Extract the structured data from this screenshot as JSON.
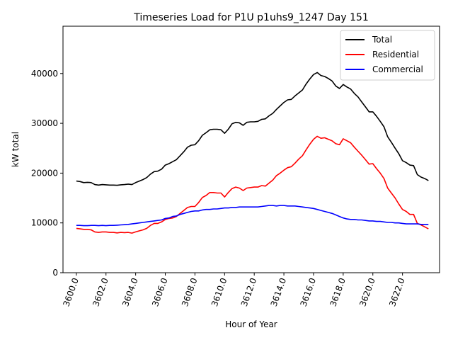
{
  "chart_data": {
    "type": "line",
    "title": "Timeseries Load for P1U p1uhs9_1247  Day 151",
    "xlabel": "Hour of Year",
    "ylabel": "kW total",
    "xlim": [
      3599.1,
      3624.5
    ],
    "ylim": [
      0,
      49500
    ],
    "xticks": [
      3600,
      3602,
      3604,
      3606,
      3608,
      3610,
      3612,
      3614,
      3616,
      3618,
      3620,
      3622
    ],
    "xtick_labels": [
      "3600.0",
      "3602.0",
      "3604.0",
      "3606.0",
      "3608.0",
      "3610.0",
      "3612.0",
      "3614.0",
      "3616.0",
      "3618.0",
      "3620.0",
      "3622.0"
    ],
    "yticks": [
      0,
      10000,
      20000,
      30000,
      40000
    ],
    "ytick_labels": [
      "0",
      "10000",
      "20000",
      "30000",
      "40000"
    ],
    "legend_position": "top-right",
    "x": [
      3600.0,
      3600.25,
      3600.5,
      3600.75,
      3601.0,
      3601.25,
      3601.5,
      3601.75,
      3602.0,
      3602.25,
      3602.5,
      3602.75,
      3603.0,
      3603.25,
      3603.5,
      3603.75,
      3604.0,
      3604.25,
      3604.5,
      3604.75,
      3605.0,
      3605.25,
      3605.5,
      3605.75,
      3606.0,
      3606.25,
      3606.5,
      3606.75,
      3607.0,
      3607.25,
      3607.5,
      3607.75,
      3608.0,
      3608.25,
      3608.5,
      3608.75,
      3609.0,
      3609.25,
      3609.5,
      3609.75,
      3610.0,
      3610.25,
      3610.5,
      3610.75,
      3611.0,
      3611.25,
      3611.5,
      3611.75,
      3612.0,
      3612.25,
      3612.5,
      3612.75,
      3613.0,
      3613.25,
      3613.5,
      3613.75,
      3614.0,
      3614.25,
      3614.5,
      3614.75,
      3615.0,
      3615.25,
      3615.5,
      3615.75,
      3616.0,
      3616.25,
      3616.5,
      3616.75,
      3617.0,
      3617.25,
      3617.5,
      3617.75,
      3618.0,
      3618.25,
      3618.5,
      3618.75,
      3619.0,
      3619.25,
      3619.5,
      3619.75,
      3620.0,
      3620.25,
      3620.5,
      3620.75,
      3621.0,
      3621.25,
      3621.5,
      3621.75,
      3622.0,
      3622.25,
      3622.5,
      3622.75,
      3623.0,
      3623.25,
      3623.5,
      3623.75
    ],
    "series": [
      {
        "name": "Total",
        "color": "#000000",
        "values": [
          18400,
          18300,
          18100,
          18150,
          18100,
          17700,
          17600,
          17700,
          17650,
          17600,
          17600,
          17550,
          17650,
          17700,
          17800,
          17700,
          18100,
          18400,
          18700,
          19100,
          19800,
          20300,
          20400,
          20800,
          21600,
          21900,
          22300,
          22700,
          23500,
          24300,
          25200,
          25600,
          25700,
          26500,
          27600,
          28100,
          28700,
          28800,
          28800,
          28700,
          28000,
          28800,
          29900,
          30200,
          30100,
          29600,
          30200,
          30300,
          30300,
          30400,
          30800,
          30900,
          31500,
          32000,
          32800,
          33500,
          34200,
          34700,
          34800,
          35500,
          36100,
          36700,
          37900,
          38900,
          39800,
          40200,
          39600,
          39400,
          39000,
          38500,
          37500,
          37000,
          37800,
          37300,
          36900,
          36000,
          35300,
          34300,
          33300,
          32300,
          32300,
          31400,
          30400,
          29300,
          27300,
          26200,
          25000,
          23900,
          22500,
          22100,
          21600,
          21500,
          19700,
          19200,
          18900,
          18500
        ]
      },
      {
        "name": "Residential",
        "color": "#ff0000",
        "values": [
          8900,
          8800,
          8700,
          8700,
          8600,
          8200,
          8100,
          8200,
          8200,
          8100,
          8100,
          8000,
          8100,
          8050,
          8100,
          7950,
          8200,
          8400,
          8600,
          8900,
          9500,
          9900,
          9900,
          10200,
          10700,
          10900,
          11000,
          11300,
          11900,
          12500,
          13100,
          13300,
          13300,
          14100,
          15100,
          15500,
          16100,
          16100,
          16000,
          16000,
          15200,
          16100,
          16900,
          17200,
          17000,
          16500,
          17000,
          17100,
          17200,
          17200,
          17500,
          17400,
          18000,
          18600,
          19500,
          20000,
          20600,
          21100,
          21300,
          22000,
          22800,
          23500,
          24700,
          25800,
          26800,
          27400,
          27000,
          27100,
          26800,
          26500,
          25900,
          25700,
          26900,
          26500,
          26100,
          25200,
          24400,
          23600,
          22700,
          21800,
          21900,
          20900,
          20000,
          18900,
          17000,
          16000,
          15000,
          13800,
          12700,
          12300,
          11700,
          11700,
          9900,
          9600,
          9200,
          8800
        ]
      },
      {
        "name": "Commercial",
        "color": "#0000ff",
        "values": [
          9500,
          9500,
          9450,
          9450,
          9500,
          9500,
          9450,
          9500,
          9450,
          9500,
          9500,
          9550,
          9600,
          9650,
          9700,
          9800,
          9900,
          10000,
          10100,
          10200,
          10300,
          10400,
          10500,
          10600,
          10900,
          11000,
          11300,
          11400,
          11700,
          11900,
          12100,
          12300,
          12400,
          12400,
          12600,
          12700,
          12700,
          12800,
          12800,
          12900,
          13000,
          13000,
          13100,
          13100,
          13200,
          13200,
          13200,
          13200,
          13200,
          13200,
          13300,
          13400,
          13500,
          13500,
          13400,
          13500,
          13500,
          13400,
          13400,
          13400,
          13300,
          13200,
          13100,
          13000,
          12900,
          12700,
          12500,
          12300,
          12100,
          11900,
          11600,
          11300,
          11000,
          10800,
          10700,
          10700,
          10600,
          10600,
          10500,
          10400,
          10400,
          10300,
          10300,
          10200,
          10100,
          10100,
          10000,
          10000,
          9900,
          9800,
          9800,
          9800,
          9800,
          9700,
          9700,
          9700
        ]
      }
    ]
  }
}
